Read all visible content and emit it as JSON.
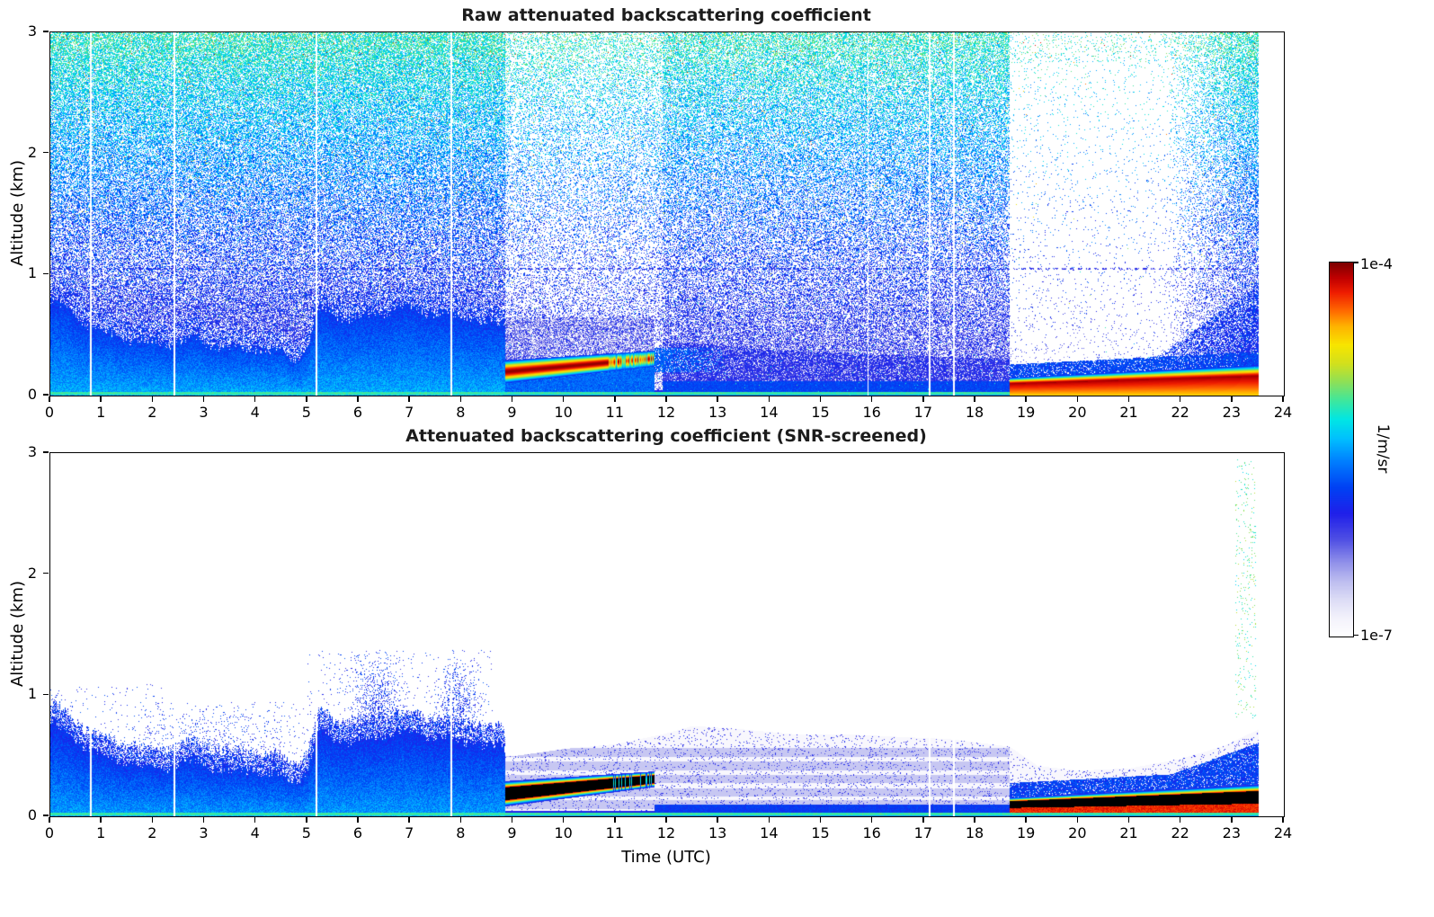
{
  "chart_data": {
    "type": "heatmap",
    "layout": "two stacked time-height lidar backscatter panels sharing one logarithmic colorbar",
    "x_axis": {
      "label": "Time (UTC)",
      "range": [
        0,
        24
      ],
      "ticks": [
        0,
        1,
        2,
        3,
        4,
        5,
        6,
        7,
        8,
        9,
        10,
        11,
        12,
        13,
        14,
        15,
        16,
        17,
        18,
        19,
        20,
        21,
        22,
        23,
        24
      ],
      "data_end": 23.5
    },
    "y_axis": {
      "label": "Altitude (km)",
      "range": [
        0,
        3
      ],
      "ticks": [
        0,
        1,
        2,
        3
      ]
    },
    "colorbar": {
      "label": "1/m/sr",
      "max_label": "1e-4",
      "min_label": "1e-7",
      "scale": "log",
      "log_min": -7,
      "log_max": -4
    },
    "colormap_stops": [
      {
        "t": 0.0,
        "color": "#ffffff"
      },
      {
        "t": 0.05,
        "color": "#f4f3fc"
      },
      {
        "t": 0.1,
        "color": "#ddddf6"
      },
      {
        "t": 0.15,
        "color": "#bdbdf0"
      },
      {
        "t": 0.2,
        "color": "#9090ea"
      },
      {
        "t": 0.26,
        "color": "#5050e4"
      },
      {
        "t": 0.33,
        "color": "#2020ea"
      },
      {
        "t": 0.4,
        "color": "#0042f4"
      },
      {
        "t": 0.47,
        "color": "#0080ff"
      },
      {
        "t": 0.53,
        "color": "#00c0ff"
      },
      {
        "t": 0.58,
        "color": "#00e6e6"
      },
      {
        "t": 0.63,
        "color": "#3ce8a0"
      },
      {
        "t": 0.68,
        "color": "#8ce05a"
      },
      {
        "t": 0.73,
        "color": "#d2e01e"
      },
      {
        "t": 0.78,
        "color": "#f8e600"
      },
      {
        "t": 0.83,
        "color": "#ffb400"
      },
      {
        "t": 0.875,
        "color": "#ff6400"
      },
      {
        "t": 0.92,
        "color": "#f01e00"
      },
      {
        "t": 0.96,
        "color": "#c00000"
      },
      {
        "t": 1.0,
        "color": "#7e0000"
      }
    ],
    "panels": [
      {
        "id": "raw",
        "title": "Raw attenuated backscattering coefficient",
        "features": {
          "description": "Dense speckle noise above the boundary layer (blue at low altitude grading to cyan/green near 3 km); solid blue convective boundary layer 0-9 UTC; strong dark-red aerosol/cloud layer 9-11.75 UTC near 0.2-0.3 km with cyan striping after 10.9; strong near-surface dark-red layer 18.7-23.5 UTC; near-total signal attenuation (white) above that layer 18.7-21.7 UTC; thin cyan surface return at 0.03 km; blank after 23.5 UTC.",
          "boundary_layer_top_km": [
            [
              0,
              0.95
            ],
            [
              0.4,
              0.85
            ],
            [
              0.8,
              0.72
            ],
            [
              1.2,
              0.66
            ],
            [
              1.6,
              0.62
            ],
            [
              2.0,
              0.58
            ],
            [
              2.4,
              0.6
            ],
            [
              2.8,
              0.63
            ],
            [
              3.2,
              0.58
            ],
            [
              3.6,
              0.55
            ],
            [
              4.0,
              0.56
            ],
            [
              4.4,
              0.52
            ],
            [
              4.7,
              0.46
            ],
            [
              5.0,
              0.55
            ],
            [
              5.2,
              0.88
            ],
            [
              5.6,
              0.82
            ],
            [
              6.0,
              0.8
            ],
            [
              6.4,
              0.84
            ],
            [
              6.8,
              0.88
            ],
            [
              7.2,
              0.86
            ],
            [
              7.6,
              0.83
            ],
            [
              8.0,
              0.8
            ],
            [
              8.4,
              0.78
            ],
            [
              8.85,
              0.73
            ]
          ],
          "layers": [
            {
              "t0": 8.85,
              "t1": 11.75,
              "alt_start": 0.2,
              "alt_end": 0.31,
              "w_start": 0.095,
              "w_end": 0.065,
              "stripe_after": 10.85,
              "peak": "1e-4"
            },
            {
              "t0": 18.65,
              "t1": 23.5,
              "alt_start": 0.1,
              "alt_end": 0.16,
              "w_start": 0.05,
              "w_end": 0.095,
              "peak": "1e-4"
            }
          ],
          "attenuation_zones": [
            {
              "t0": 8.85,
              "t1": 11.9,
              "factor": 0.45
            },
            {
              "t0": 11.9,
              "t1": 18.65,
              "factor": 0.8
            },
            {
              "t0": 18.65,
              "t1": 21.7,
              "factor": 0.05
            },
            {
              "t0": 21.7,
              "t1": 23.5,
              "factor": [
                0.05,
                1.0
              ]
            }
          ],
          "haze_top_km": [
            [
              11.9,
              0.45
            ],
            [
              13.0,
              0.42
            ],
            [
              14.0,
              0.38
            ],
            [
              15.0,
              0.36
            ],
            [
              16.0,
              0.34
            ],
            [
              17.0,
              0.33
            ],
            [
              18.65,
              0.3
            ]
          ],
          "gap_times_utc": [
            0.78,
            2.4,
            5.17,
            7.8,
            15.9,
            17.1,
            17.57
          ],
          "surface_return_km": 0.03,
          "artifact_line_km": 1.05
        }
      },
      {
        "id": "screened",
        "title": "Attenuated backscattering coefficient (SNR-screened)",
        "features": {
          "description": "Noise removed (white background); blue boundary layer 0-9 UTC with speckled top up to ~1.3 km around 5-8.5 UTC; saturated black layer core 9-11.75 UTC at ~0.2-0.3 km with green/cyan fringes; pale stratified lavender haze up to ~0.7 km 9-18.7 UTC; black near-surface layer 18.7-23.5 UTC with orange band below and blue cap above; sparse cyan plume near 23.3 UTC up to 2.9 km; thin cyan surface return; blank after 23.5 UTC.",
          "boundary_layer_top_km": [
            [
              0,
              0.95
            ],
            [
              0.4,
              0.85
            ],
            [
              0.8,
              0.72
            ],
            [
              1.2,
              0.66
            ],
            [
              1.6,
              0.62
            ],
            [
              2.0,
              0.58
            ],
            [
              2.4,
              0.6
            ],
            [
              2.8,
              0.63
            ],
            [
              3.2,
              0.58
            ],
            [
              3.6,
              0.55
            ],
            [
              4.0,
              0.56
            ],
            [
              4.4,
              0.52
            ],
            [
              4.7,
              0.46
            ],
            [
              5.0,
              0.55
            ],
            [
              5.2,
              0.88
            ],
            [
              5.6,
              0.82
            ],
            [
              6.0,
              0.8
            ],
            [
              6.4,
              0.84
            ],
            [
              6.8,
              0.88
            ],
            [
              7.2,
              0.86
            ],
            [
              7.6,
              0.83
            ],
            [
              8.0,
              0.8
            ],
            [
              8.4,
              0.78
            ],
            [
              8.85,
              0.73
            ]
          ],
          "speckle_patches": [
            {
              "t0": 0,
              "t1": 2.2,
              "alt_max": 1.1,
              "density": 0.05
            },
            {
              "t0": 2.2,
              "t1": 5.0,
              "alt_max": 0.95,
              "density": 0.04
            },
            {
              "t0": 5.0,
              "t1": 8.6,
              "alt_max": 1.38,
              "density": 0.13
            }
          ],
          "layers": [
            {
              "t0": 8.85,
              "t1": 11.75,
              "alt_start": 0.19,
              "alt_end": 0.31,
              "w_start": 0.105,
              "w_end": 0.065,
              "stripe_after": 10.85,
              "core": "black (over-range)"
            },
            {
              "t0": 18.65,
              "t1": 23.5,
              "alt_start": 0.1,
              "alt_end": 0.16,
              "w_start": 0.05,
              "w_end": 0.095,
              "core": "black (over-range)"
            }
          ],
          "haze_top_km": [
            [
              9.0,
              0.5
            ],
            [
              10.0,
              0.56
            ],
            [
              11.0,
              0.6
            ],
            [
              11.9,
              0.68
            ],
            [
              12.5,
              0.75
            ],
            [
              13.5,
              0.72
            ],
            [
              14.5,
              0.68
            ],
            [
              15.5,
              0.68
            ],
            [
              16.5,
              0.66
            ],
            [
              17.5,
              0.64
            ],
            [
              18.65,
              0.58
            ],
            [
              19.2,
              0.42
            ],
            [
              20.0,
              0.38
            ],
            [
              21.0,
              0.4
            ],
            [
              22.0,
              0.48
            ],
            [
              22.8,
              0.58
            ],
            [
              23.5,
              0.72
            ]
          ],
          "haze_bands_km": [
            0.1,
            0.2,
            0.31,
            0.42,
            0.53
          ],
          "plume": {
            "t0": 23.05,
            "t1": 23.45,
            "alt0": 0.8,
            "alt1": 2.95,
            "density": 0.045
          },
          "gap_times_utc": [
            0.78,
            2.4,
            5.17,
            7.8,
            17.1,
            17.57
          ],
          "surface_return_km": 0.03
        }
      }
    ]
  }
}
